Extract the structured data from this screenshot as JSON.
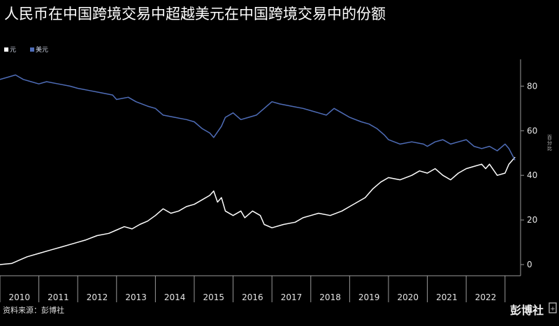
{
  "title": "人民币在中国跨境交易中超越美元在中国跨境交易中的份额",
  "source": "资料来源：彭博社",
  "brand": "彭博社",
  "colors": {
    "background": "#000000",
    "yuan": "#ffffff",
    "usd": "#4f6db8",
    "axis": "#9a9a9a"
  },
  "chart_data": {
    "type": "line",
    "title": "人民币在中国跨境交易中超越美元在中国跨境交易中的份额",
    "ylabel": "百分比",
    "ylim": [
      -5,
      92
    ],
    "xlim": [
      2010,
      2023.4
    ],
    "yticks": [
      0,
      20,
      40,
      60,
      80
    ],
    "x_tick_labels": [
      "2010",
      "2011",
      "2012",
      "2013",
      "2014",
      "2015",
      "2016",
      "2017",
      "2018",
      "2019",
      "2020",
      "2021",
      "2022"
    ],
    "legend": [
      "元",
      "美元"
    ],
    "series": [
      {
        "name": "元",
        "color": "#ffffff",
        "points": [
          [
            2010.0,
            0
          ],
          [
            2010.3,
            0.5
          ],
          [
            2010.5,
            2
          ],
          [
            2010.7,
            3.5
          ],
          [
            2011.0,
            5
          ],
          [
            2011.3,
            6.5
          ],
          [
            2011.6,
            8
          ],
          [
            2011.9,
            9.5
          ],
          [
            2012.2,
            11
          ],
          [
            2012.5,
            13
          ],
          [
            2012.8,
            14
          ],
          [
            2013.0,
            15.5
          ],
          [
            2013.2,
            17
          ],
          [
            2013.4,
            16
          ],
          [
            2013.6,
            18
          ],
          [
            2013.8,
            19.5
          ],
          [
            2014.0,
            22
          ],
          [
            2014.2,
            25
          ],
          [
            2014.4,
            23
          ],
          [
            2014.6,
            24
          ],
          [
            2014.8,
            26
          ],
          [
            2015.0,
            27
          ],
          [
            2015.2,
            29
          ],
          [
            2015.4,
            31
          ],
          [
            2015.5,
            33
          ],
          [
            2015.6,
            28
          ],
          [
            2015.7,
            30
          ],
          [
            2015.8,
            24
          ],
          [
            2016.0,
            22
          ],
          [
            2016.2,
            24
          ],
          [
            2016.3,
            21
          ],
          [
            2016.5,
            24
          ],
          [
            2016.7,
            22
          ],
          [
            2016.8,
            18
          ],
          [
            2017.0,
            16.5
          ],
          [
            2017.3,
            18
          ],
          [
            2017.6,
            19
          ],
          [
            2017.8,
            21
          ],
          [
            2018.0,
            22
          ],
          [
            2018.2,
            23
          ],
          [
            2018.5,
            22
          ],
          [
            2018.8,
            24
          ],
          [
            2019.0,
            26
          ],
          [
            2019.2,
            28
          ],
          [
            2019.4,
            30
          ],
          [
            2019.6,
            34
          ],
          [
            2019.8,
            37
          ],
          [
            2020.0,
            39
          ],
          [
            2020.3,
            38
          ],
          [
            2020.6,
            40
          ],
          [
            2020.8,
            42
          ],
          [
            2021.0,
            41
          ],
          [
            2021.2,
            43
          ],
          [
            2021.4,
            40
          ],
          [
            2021.6,
            38
          ],
          [
            2021.8,
            41
          ],
          [
            2022.0,
            43
          ],
          [
            2022.2,
            44
          ],
          [
            2022.4,
            45
          ],
          [
            2022.5,
            43
          ],
          [
            2022.6,
            45
          ],
          [
            2022.8,
            40
          ],
          [
            2023.0,
            41
          ],
          [
            2023.1,
            45
          ],
          [
            2023.25,
            48
          ]
        ]
      },
      {
        "name": "美元",
        "color": "#4f6db8",
        "points": [
          [
            2010.0,
            83
          ],
          [
            2010.2,
            84
          ],
          [
            2010.4,
            85
          ],
          [
            2010.6,
            83
          ],
          [
            2010.8,
            82
          ],
          [
            2011.0,
            81
          ],
          [
            2011.2,
            82
          ],
          [
            2011.5,
            81
          ],
          [
            2011.8,
            80
          ],
          [
            2012.0,
            79
          ],
          [
            2012.3,
            78
          ],
          [
            2012.6,
            77
          ],
          [
            2012.9,
            76
          ],
          [
            2013.0,
            74
          ],
          [
            2013.3,
            75
          ],
          [
            2013.5,
            73
          ],
          [
            2013.8,
            71
          ],
          [
            2014.0,
            70
          ],
          [
            2014.2,
            67
          ],
          [
            2014.5,
            66
          ],
          [
            2014.8,
            65
          ],
          [
            2015.0,
            64
          ],
          [
            2015.2,
            61
          ],
          [
            2015.4,
            59
          ],
          [
            2015.5,
            57
          ],
          [
            2015.7,
            62
          ],
          [
            2015.8,
            66
          ],
          [
            2016.0,
            68
          ],
          [
            2016.2,
            65
          ],
          [
            2016.4,
            66
          ],
          [
            2016.6,
            67
          ],
          [
            2016.8,
            70
          ],
          [
            2017.0,
            73
          ],
          [
            2017.2,
            72
          ],
          [
            2017.5,
            71
          ],
          [
            2017.8,
            70
          ],
          [
            2018.0,
            69
          ],
          [
            2018.2,
            68
          ],
          [
            2018.4,
            67
          ],
          [
            2018.6,
            70
          ],
          [
            2018.8,
            68
          ],
          [
            2019.0,
            66
          ],
          [
            2019.3,
            64
          ],
          [
            2019.5,
            63
          ],
          [
            2019.7,
            61
          ],
          [
            2019.9,
            58
          ],
          [
            2020.0,
            56
          ],
          [
            2020.3,
            54
          ],
          [
            2020.6,
            55
          ],
          [
            2020.9,
            54
          ],
          [
            2021.0,
            53
          ],
          [
            2021.2,
            55
          ],
          [
            2021.4,
            56
          ],
          [
            2021.6,
            54
          ],
          [
            2021.8,
            55
          ],
          [
            2022.0,
            56
          ],
          [
            2022.2,
            53
          ],
          [
            2022.4,
            52
          ],
          [
            2022.6,
            53
          ],
          [
            2022.8,
            51
          ],
          [
            2023.0,
            54
          ],
          [
            2023.1,
            52
          ],
          [
            2023.25,
            47
          ]
        ]
      }
    ]
  }
}
